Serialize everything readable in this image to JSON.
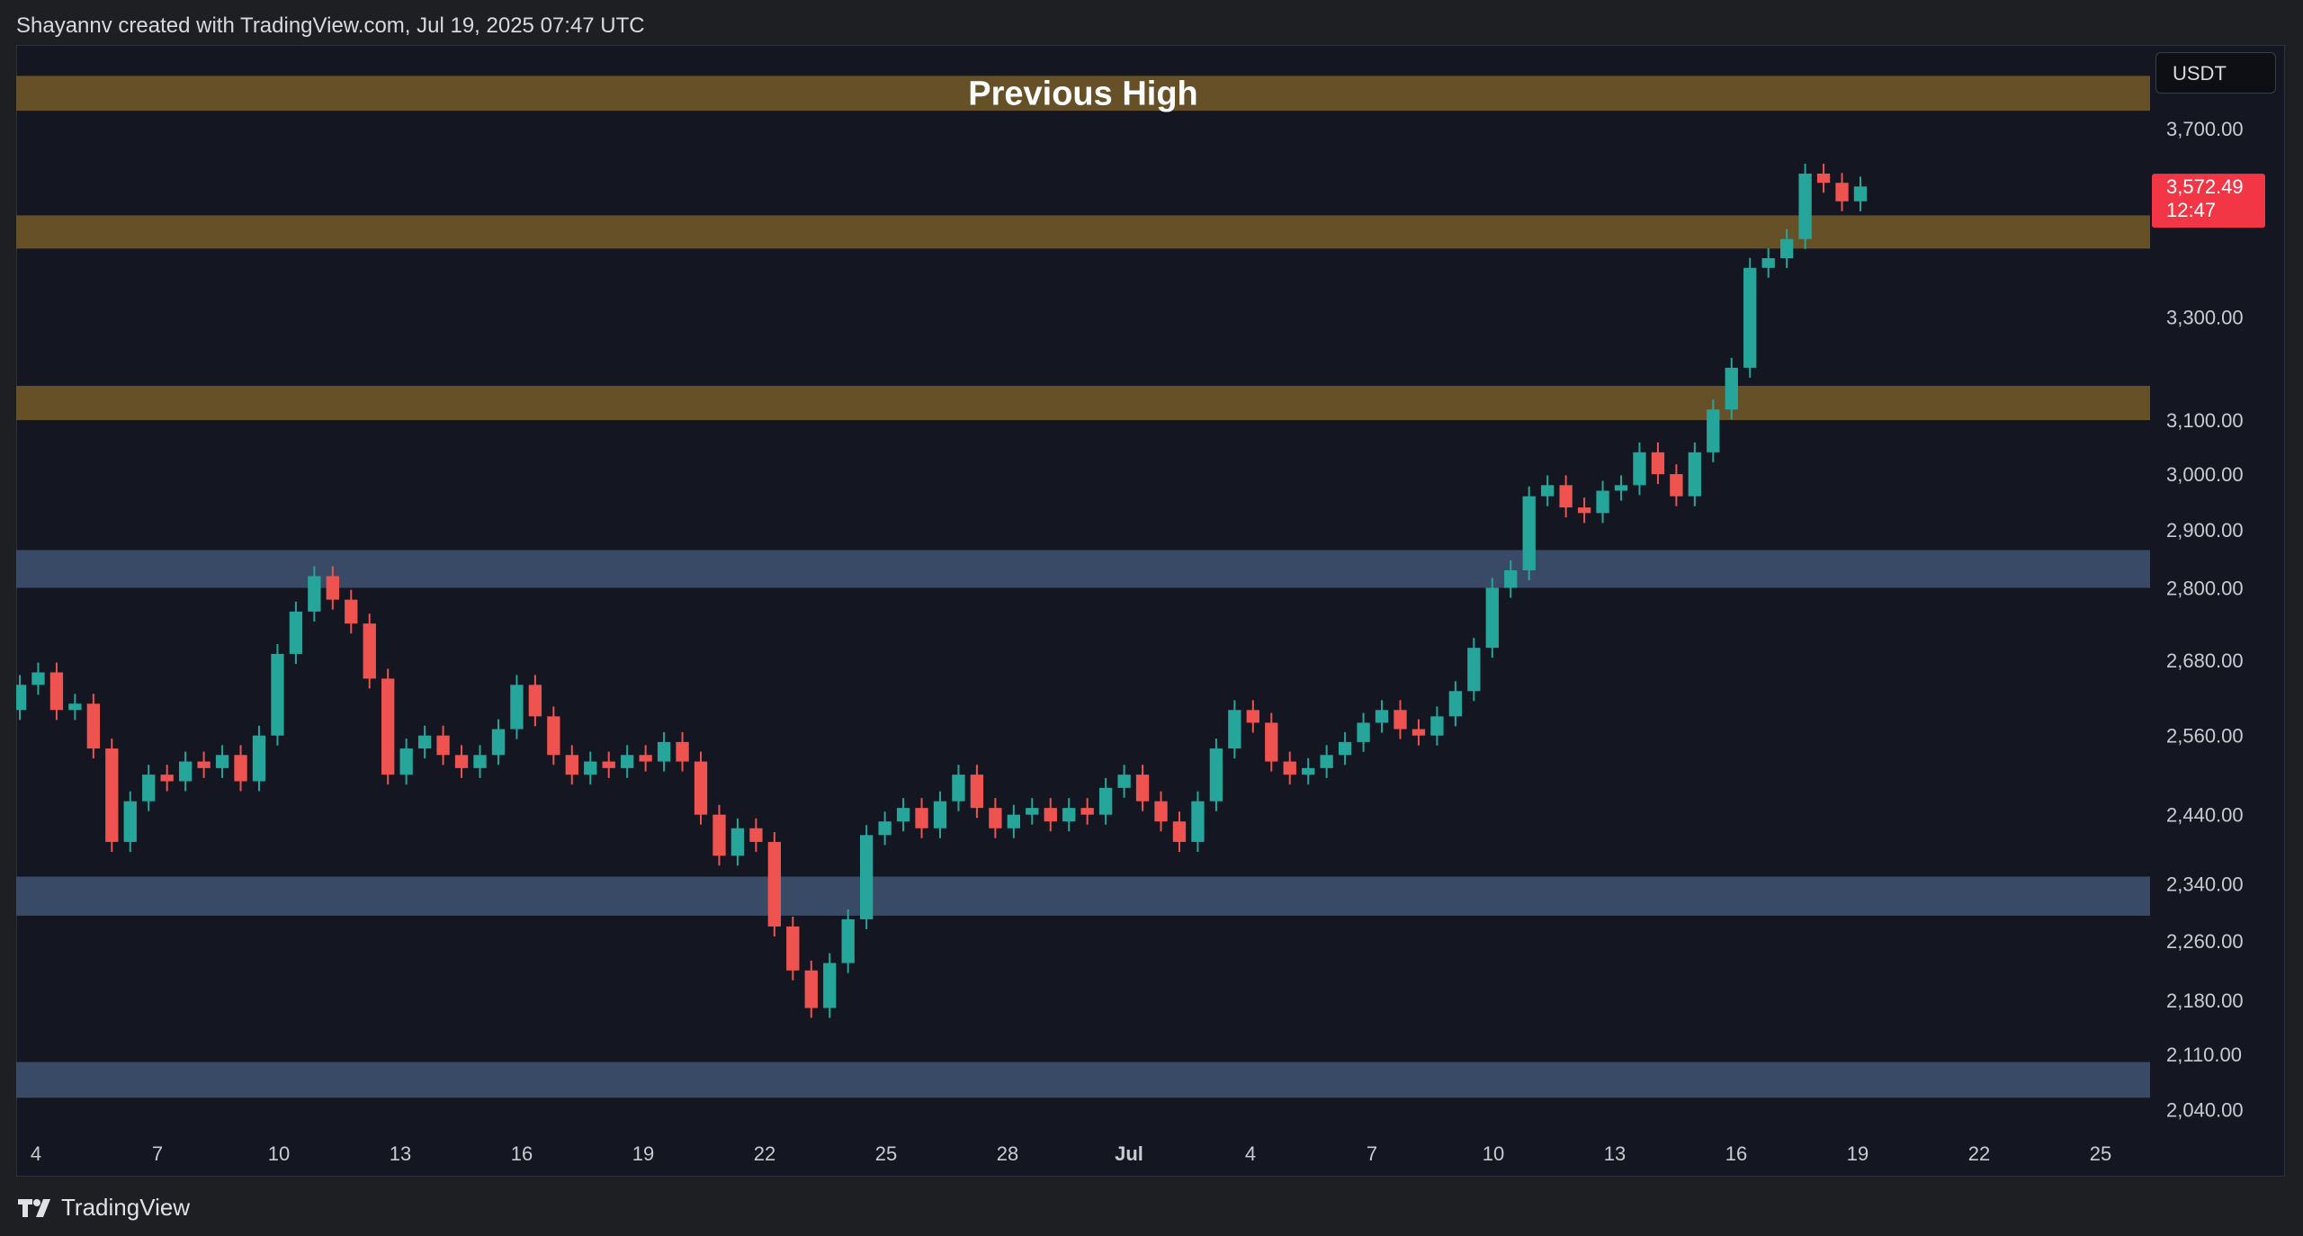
{
  "header": {
    "attribution": "Shayannv created with TradingView.com, Jul 19, 2025 07:47 UTC"
  },
  "currency": "USDT",
  "footer": {
    "brand": "TradingView"
  },
  "colors": {
    "bg": "#141722",
    "supply": "#6e5628",
    "demand": "#3f5472",
    "up": "#26a69a",
    "down": "#ef5350",
    "price_tag": "#f23645"
  },
  "chart_data": {
    "type": "candlestick",
    "title": "",
    "x_tick_labels": [
      "4",
      "7",
      "10",
      "13",
      "16",
      "19",
      "22",
      "25",
      "28",
      "Jul",
      "4",
      "7",
      "10",
      "13",
      "16",
      "19",
      "22",
      "25"
    ],
    "y_tick_labels": [
      "3,700.00",
      "3,300.00",
      "3,100.00",
      "3,000.00",
      "2,900.00",
      "2,800.00",
      "2,680.00",
      "2,560.00",
      "2,440.00",
      "2,340.00",
      "2,260.00",
      "2,180.00",
      "2,110.00",
      "2,040.00"
    ],
    "y_ticks": [
      3700,
      3300,
      3100,
      3000,
      2900,
      2800,
      2680,
      2560,
      2440,
      2340,
      2260,
      2180,
      2110,
      2040
    ],
    "scale": "log",
    "ylim": [
      2000,
      3850
    ],
    "last_price": {
      "value": 3572.49,
      "label": "3,572.49",
      "countdown": "12:47"
    },
    "zones": [
      {
        "kind": "supply",
        "low": 3740,
        "high": 3820,
        "label": "Previous High"
      },
      {
        "kind": "supply",
        "low": 3440,
        "high": 3510,
        "label": ""
      },
      {
        "kind": "supply",
        "low": 3100,
        "high": 3165,
        "label": ""
      },
      {
        "kind": "demand",
        "low": 2800,
        "high": 2865,
        "label": ""
      },
      {
        "kind": "demand",
        "low": 2295,
        "high": 2350,
        "label": ""
      },
      {
        "kind": "demand",
        "low": 2055,
        "high": 2100,
        "label": ""
      }
    ],
    "series": [
      {
        "values": [
          [
            2600,
            2640
          ],
          [
            2640,
            2660
          ],
          [
            2660,
            2600
          ],
          [
            2600,
            2610
          ],
          [
            2610,
            2540
          ],
          [
            2540,
            2400
          ],
          [
            2400,
            2460
          ],
          [
            2460,
            2500
          ],
          [
            2500,
            2490
          ],
          [
            2490,
            2520
          ],
          [
            2520,
            2510
          ],
          [
            2510,
            2530
          ],
          [
            2530,
            2490
          ],
          [
            2490,
            2560
          ],
          [
            2560,
            2690
          ],
          [
            2690,
            2760
          ],
          [
            2760,
            2820
          ],
          [
            2820,
            2780
          ],
          [
            2780,
            2740
          ],
          [
            2740,
            2650
          ],
          [
            2650,
            2500
          ],
          [
            2500,
            2540
          ],
          [
            2540,
            2560
          ],
          [
            2560,
            2530
          ],
          [
            2530,
            2510
          ],
          [
            2510,
            2530
          ],
          [
            2530,
            2570
          ],
          [
            2570,
            2640
          ],
          [
            2640,
            2590
          ],
          [
            2590,
            2530
          ],
          [
            2530,
            2500
          ],
          [
            2500,
            2520
          ],
          [
            2520,
            2510
          ],
          [
            2510,
            2530
          ],
          [
            2530,
            2520
          ],
          [
            2520,
            2550
          ],
          [
            2550,
            2520
          ],
          [
            2520,
            2440
          ],
          [
            2440,
            2380
          ],
          [
            2380,
            2420
          ],
          [
            2420,
            2400
          ],
          [
            2400,
            2280
          ],
          [
            2280,
            2220
          ],
          [
            2220,
            2170
          ],
          [
            2170,
            2230
          ],
          [
            2230,
            2290
          ],
          [
            2290,
            2410
          ],
          [
            2410,
            2430
          ],
          [
            2430,
            2450
          ],
          [
            2450,
            2420
          ],
          [
            2420,
            2460
          ],
          [
            2460,
            2500
          ],
          [
            2500,
            2450
          ],
          [
            2450,
            2420
          ],
          [
            2420,
            2440
          ],
          [
            2440,
            2450
          ],
          [
            2450,
            2430
          ],
          [
            2430,
            2450
          ],
          [
            2450,
            2440
          ],
          [
            2440,
            2480
          ],
          [
            2480,
            2500
          ],
          [
            2500,
            2460
          ],
          [
            2460,
            2430
          ],
          [
            2430,
            2400
          ],
          [
            2400,
            2460
          ],
          [
            2460,
            2540
          ],
          [
            2540,
            2600
          ],
          [
            2600,
            2580
          ],
          [
            2580,
            2520
          ],
          [
            2520,
            2500
          ],
          [
            2500,
            2510
          ],
          [
            2510,
            2530
          ],
          [
            2530,
            2550
          ],
          [
            2550,
            2580
          ],
          [
            2580,
            2600
          ],
          [
            2600,
            2570
          ],
          [
            2570,
            2560
          ],
          [
            2560,
            2590
          ],
          [
            2590,
            2630
          ],
          [
            2630,
            2700
          ],
          [
            2700,
            2800
          ],
          [
            2800,
            2830
          ],
          [
            2830,
            2960
          ],
          [
            2960,
            2980
          ],
          [
            2980,
            2940
          ],
          [
            2940,
            2930
          ],
          [
            2930,
            2970
          ],
          [
            2970,
            2980
          ],
          [
            2980,
            3040
          ],
          [
            3040,
            3000
          ],
          [
            3000,
            2960
          ],
          [
            2960,
            3040
          ],
          [
            3040,
            3120
          ],
          [
            3120,
            3200
          ],
          [
            3200,
            3400
          ],
          [
            3400,
            3420
          ],
          [
            3420,
            3460
          ],
          [
            3460,
            3600
          ],
          [
            3600,
            3580
          ],
          [
            3580,
            3540
          ],
          [
            3540,
            3572
          ]
        ]
      }
    ]
  }
}
